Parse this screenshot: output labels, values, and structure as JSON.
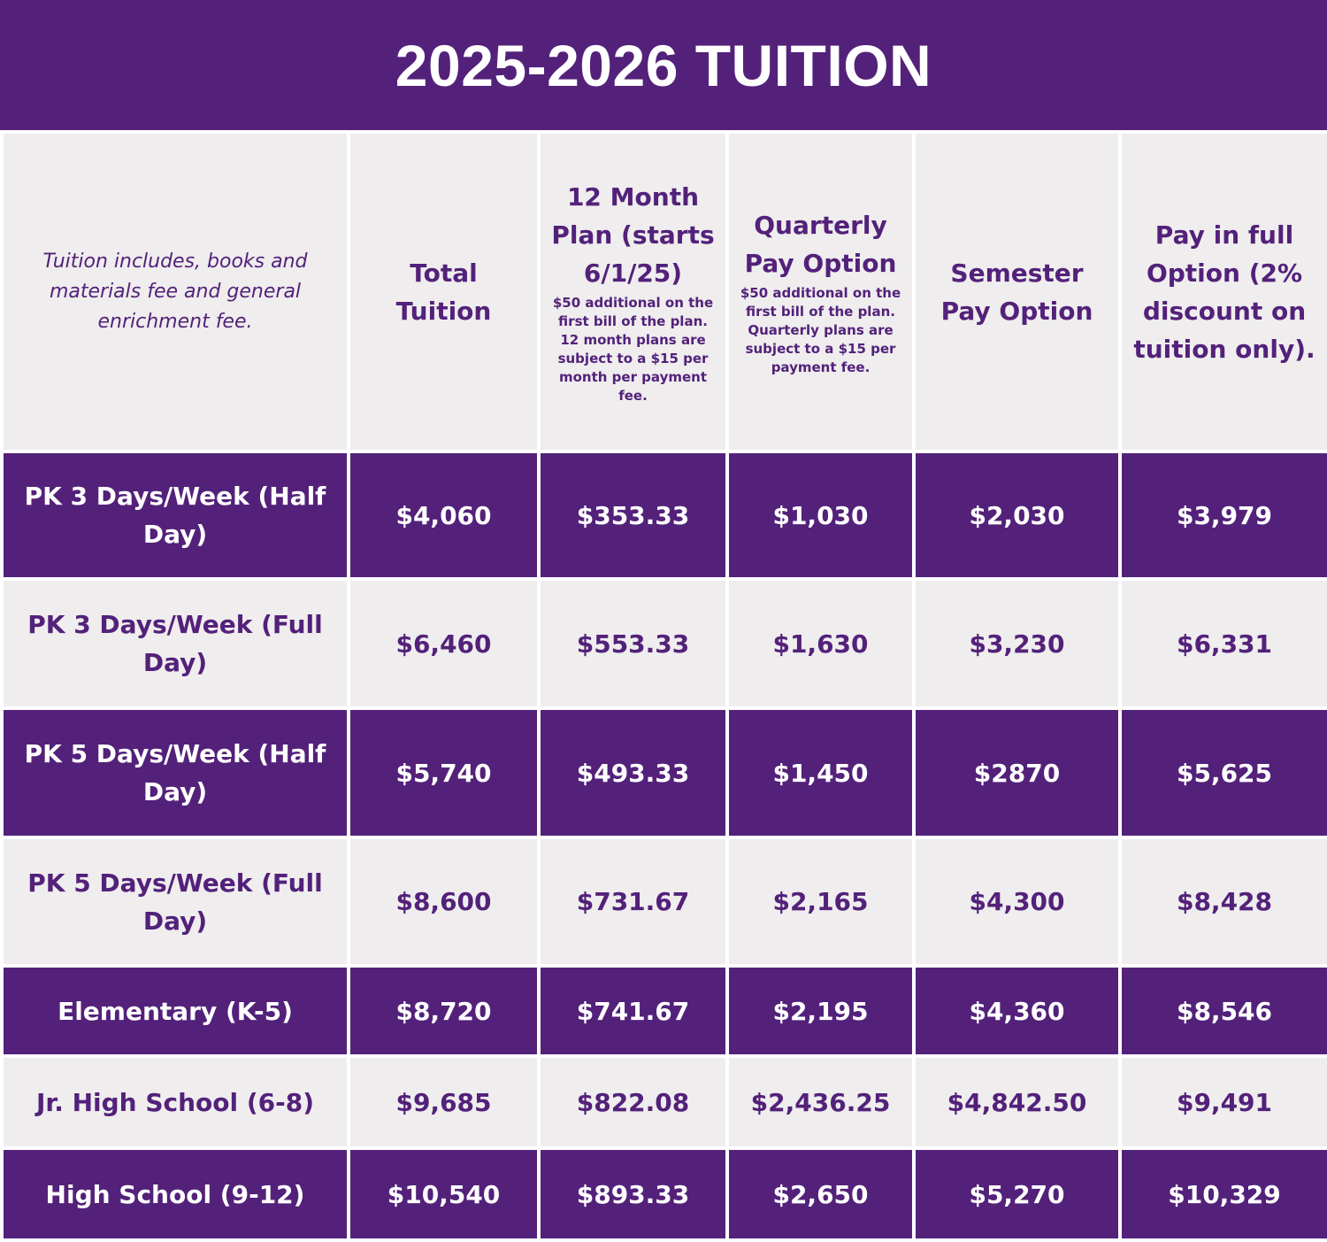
{
  "title": "2025-2026 TUITION",
  "header": {
    "note": "Tuition includes, books and materials fee and general enrichment fee.",
    "columns": [
      {
        "title": "Total Tuition",
        "sub": ""
      },
      {
        "title": "12 Month Plan (starts 6/1/25)",
        "sub": "$50 additional on the first bill of the plan. 12 month plans are subject to a $15 per month per payment fee."
      },
      {
        "title": "Quarterly Pay Option",
        "sub": "$50 additional on the first bill of the plan. Quarterly plans are subject to a $15 per payment fee."
      },
      {
        "title": "Semester Pay Option",
        "sub": ""
      },
      {
        "title": "Pay in full Option (2% discount on tuition only).",
        "sub": ""
      }
    ]
  },
  "rows": [
    {
      "label": "PK 3 Days/Week (Half Day)",
      "values": [
        "$4,060",
        "$353.33",
        "$1,030",
        "$2,030",
        "$3,979"
      ]
    },
    {
      "label": "PK 3 Days/Week (Full Day)",
      "values": [
        "$6,460",
        "$553.33",
        "$1,630",
        "$3,230",
        "$6,331"
      ]
    },
    {
      "label": "PK 5 Days/Week (Half Day)",
      "values": [
        "$5,740",
        "$493.33",
        "$1,450",
        "$2870",
        "$5,625"
      ]
    },
    {
      "label": "PK 5 Days/Week (Full Day)",
      "values": [
        "$8,600",
        "$731.67",
        "$2,165",
        "$4,300",
        "$8,428"
      ]
    },
    {
      "label": "Elementary (K-5)",
      "values": [
        "$8,720",
        "$741.67",
        "$2,195",
        "$4,360",
        "$8,546"
      ]
    },
    {
      "label": "Jr. High School (6-8)",
      "values": [
        "$9,685",
        "$822.08",
        "$2,436.25",
        "$4,842.50",
        "$9,491"
      ]
    },
    {
      "label": "High School (9-12)",
      "values": [
        "$10,540",
        "$893.33",
        "$2,650",
        "$5,270",
        "$10,329"
      ]
    }
  ],
  "colors": {
    "purple": "#53217a",
    "light": "#efedee",
    "white": "#ffffff"
  }
}
